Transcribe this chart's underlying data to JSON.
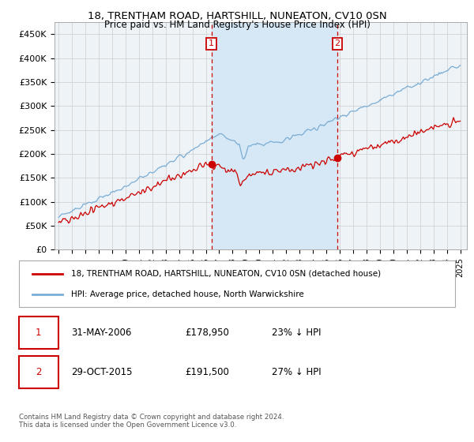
{
  "title": "18, TRENTHAM ROAD, HARTSHILL, NUNEATON, CV10 0SN",
  "subtitle": "Price paid vs. HM Land Registry's House Price Index (HPI)",
  "legend_line1": "18, TRENTHAM ROAD, HARTSHILL, NUNEATON, CV10 0SN (detached house)",
  "legend_line2": "HPI: Average price, detached house, North Warwickshire",
  "footer": "Contains HM Land Registry data © Crown copyright and database right 2024.\nThis data is licensed under the Open Government Licence v3.0.",
  "ylim": [
    0,
    475000
  ],
  "yticks": [
    0,
    50000,
    100000,
    150000,
    200000,
    250000,
    300000,
    350000,
    400000,
    450000
  ],
  "ytick_labels": [
    "£0",
    "£50K",
    "£100K",
    "£150K",
    "£200K",
    "£250K",
    "£300K",
    "£350K",
    "£400K",
    "£450K"
  ],
  "xlim_start": 1994.7,
  "xlim_end": 2025.5,
  "marker1_x": 2006.42,
  "marker1_y": 178950,
  "marker1_label": "1",
  "marker2_x": 2015.83,
  "marker2_y": 191500,
  "marker2_label": "2",
  "line_color_red": "#cc0000",
  "line_color_blue": "#7aadd4",
  "shade_color": "#d6e8f5",
  "plot_bg": "#eef3f8",
  "grid_color": "#cccccc",
  "marker_box_color": "#cc0000",
  "row1_date": "31-MAY-2006",
  "row1_price": "£178,950",
  "row1_hpi": "23% ↓ HPI",
  "row2_date": "29-OCT-2015",
  "row2_price": "£191,500",
  "row2_hpi": "27% ↓ HPI"
}
